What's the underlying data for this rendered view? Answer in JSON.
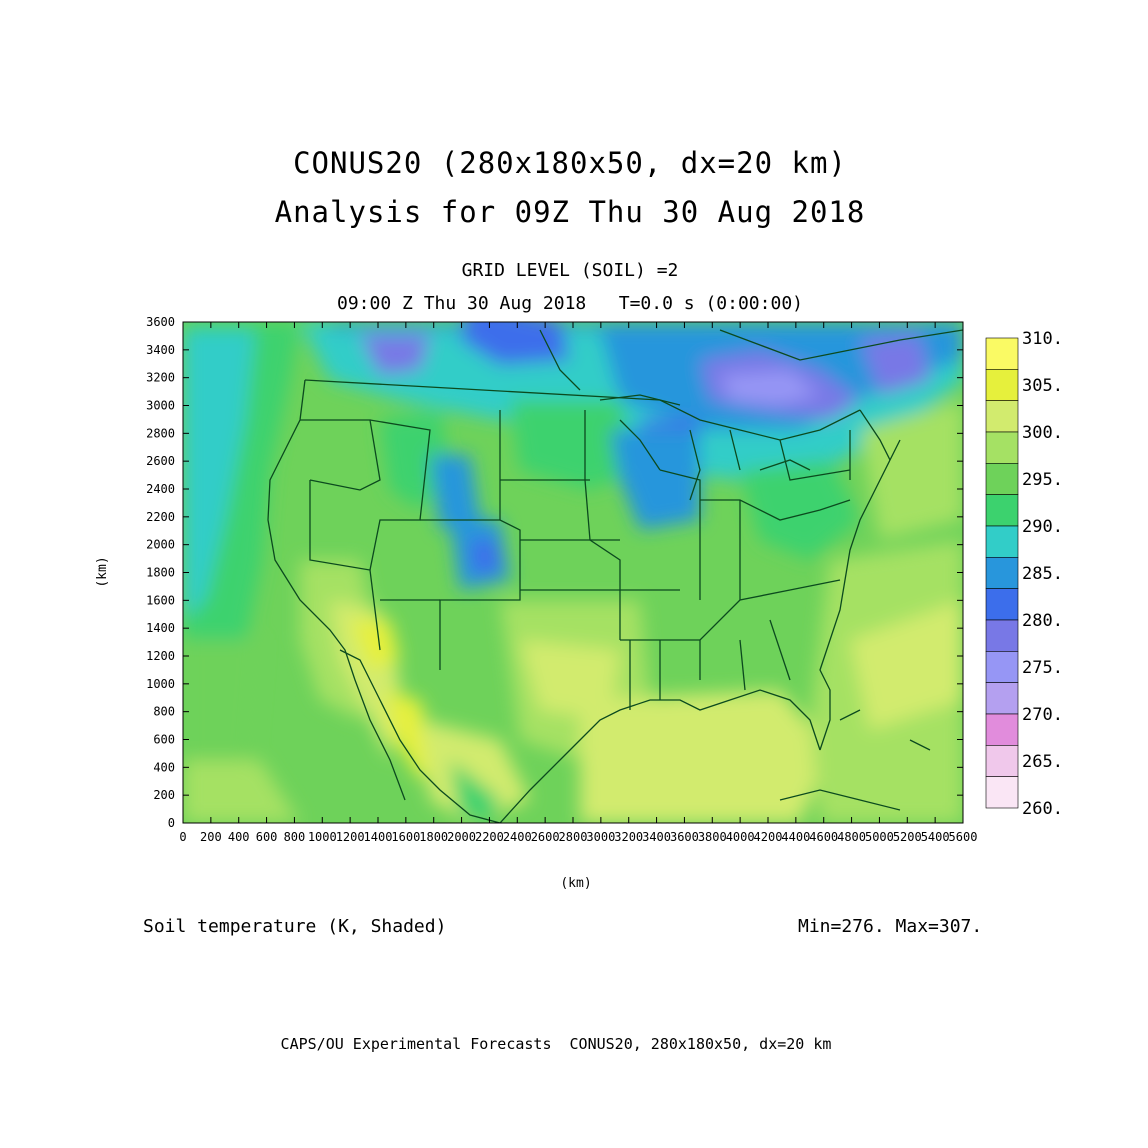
{
  "header": {
    "title_line1": "CONUS20 (280x180x50, dx=20 km)",
    "title_line2": "Analysis for 09Z Thu 30 Aug 2018",
    "subtitle_line1": "GRID LEVEL (SOIL) =2",
    "subtitle_line2": "09:00 Z Thu 30 Aug 2018   T=0.0 s (0:00:00)"
  },
  "map": {
    "field_label": "Soil temperature (K, Shaded)",
    "min_max": "Min=276. Max=307.",
    "xlabel": "(km)",
    "ylabel": "(km)",
    "x_ticks": [
      "0",
      "200",
      "400",
      "600",
      "800",
      "1000",
      "1200",
      "1400",
      "1600",
      "1800",
      "2000",
      "2200",
      "2400",
      "2600",
      "2800",
      "3000",
      "3200",
      "3400",
      "3600",
      "3800",
      "4000",
      "4200",
      "4400",
      "4600",
      "4800",
      "5000",
      "5200",
      "5400",
      "5600"
    ],
    "y_ticks": [
      "0",
      "200",
      "400",
      "600",
      "800",
      "1000",
      "1200",
      "1400",
      "1600",
      "1800",
      "2000",
      "2200",
      "2400",
      "2600",
      "2800",
      "3000",
      "3200",
      "3400",
      "3600"
    ],
    "x_range": [
      0,
      5600
    ],
    "y_range": [
      0,
      3600
    ],
    "boundary_color": "#0b4a1e"
  },
  "legend": {
    "labels": [
      "310.",
      "305.",
      "300.",
      "295.",
      "290.",
      "285.",
      "280.",
      "275.",
      "270.",
      "265.",
      "260."
    ],
    "colors": [
      "#fafa64",
      "#e6f03c",
      "#d2eb6e",
      "#a5e164",
      "#6ed25a",
      "#3cd26e",
      "#32cdc8",
      "#2896dc",
      "#3c6eeb",
      "#7878e6",
      "#9696f5",
      "#b4a0f0",
      "#e18cdc",
      "#f0c8eb",
      "#fae6f5"
    ]
  },
  "footer": "CAPS/OU Experimental Forecasts  CONUS20, 280x180x50, dx=20 km"
}
